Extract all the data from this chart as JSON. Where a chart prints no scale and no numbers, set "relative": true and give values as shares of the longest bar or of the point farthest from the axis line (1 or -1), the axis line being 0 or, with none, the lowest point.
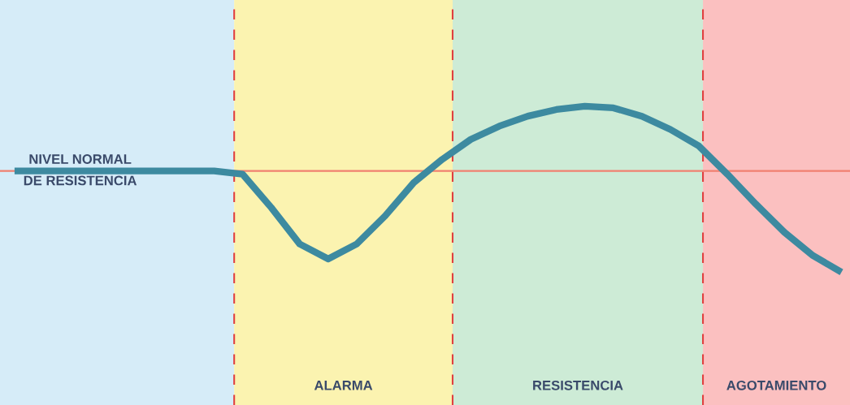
{
  "chart_data": {
    "type": "line",
    "relative": true,
    "categories": [
      null,
      null,
      null,
      null,
      null,
      null,
      null,
      null,
      null,
      null,
      null,
      null,
      null,
      null,
      null,
      null,
      null,
      null,
      null,
      null,
      null,
      null,
      null,
      null,
      null,
      null,
      null,
      null,
      null,
      null
    ],
    "series": [
      {
        "color": "#3d8aa0",
        "values": [
          0.61,
          0.61,
          0.61,
          0.61,
          0.61,
          0.61,
          0.61,
          0.61,
          0.59,
          0.39,
          0.17,
          0.08,
          0.17,
          0.34,
          0.54,
          0.68,
          0.8,
          0.88,
          0.94,
          0.98,
          1.0,
          0.99,
          0.94,
          0.86,
          0.76,
          0.59,
          0.41,
          0.24,
          0.1,
          0.0
        ]
      }
    ],
    "ref_lines": [
      {
        "axis": "y",
        "value": 0.61,
        "label": "NIVEL NORMAL\nDE RESISTENCIA",
        "color": "#f08070",
        "line_style": "solid"
      }
    ],
    "annotations": [
      "ALARMA",
      "RESISTENCIA",
      "AGOTAMIENTO"
    ],
    "grid": false,
    "legend": false,
    "marker": "none",
    "line_style": "solid"
  }
}
